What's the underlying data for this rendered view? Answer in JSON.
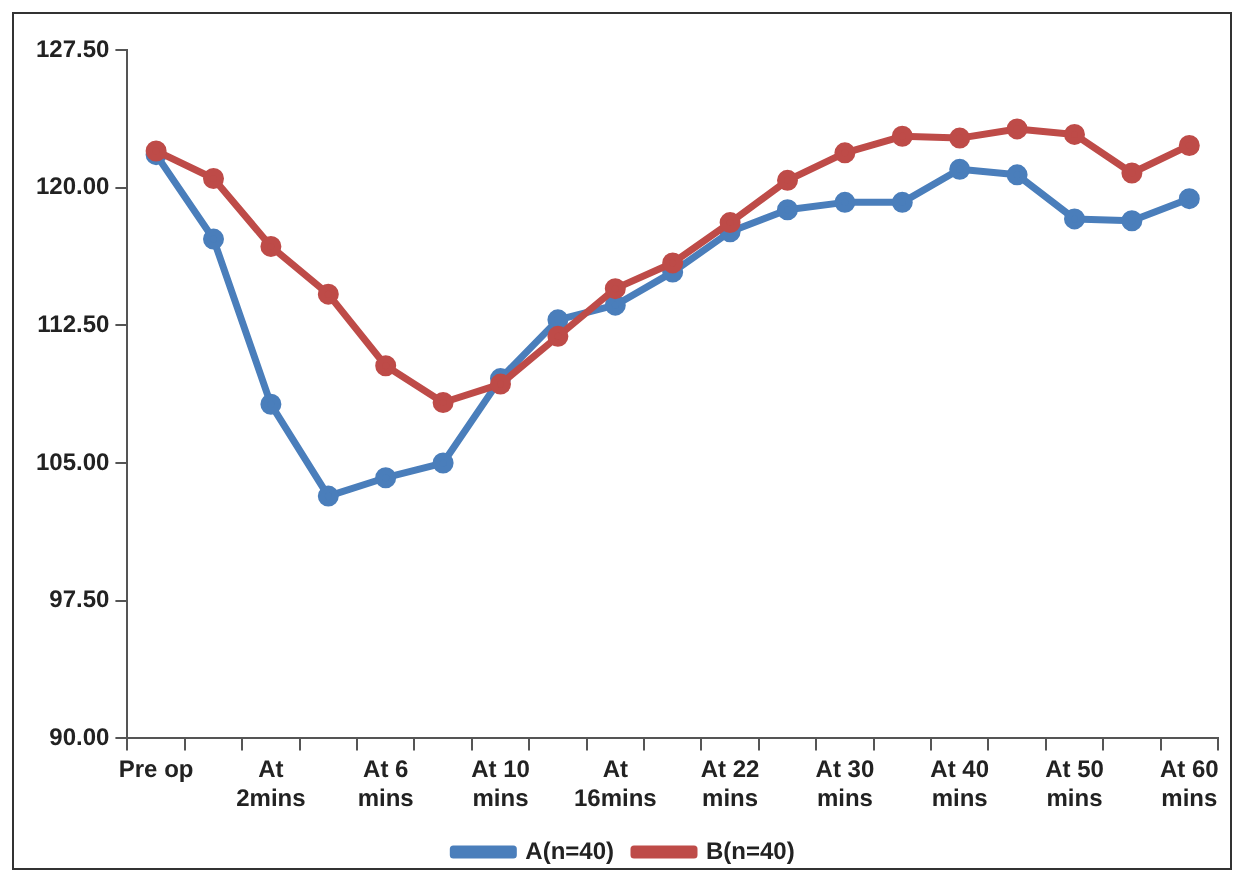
{
  "chart_data": {
    "type": "line",
    "categories": [
      "Pre op",
      null,
      "At\n2mins",
      null,
      "At 6\nmins",
      null,
      "At 10\nmins",
      null,
      "At\n16mins",
      null,
      "At 22\nmins",
      null,
      "At 30\nmins",
      null,
      "At 40\nmins",
      null,
      "At 50\nmins",
      null,
      "At 60\nmins"
    ],
    "series": [
      {
        "name": "A(n=40)",
        "color": "#4a7ebb",
        "values": [
          121.8,
          117.2,
          108.2,
          103.2,
          104.2,
          105.0,
          109.6,
          112.8,
          113.6,
          115.4,
          117.6,
          118.8,
          119.2,
          119.2,
          121.0,
          120.7,
          118.3,
          118.2,
          119.4
        ]
      },
      {
        "name": "B(n=40)",
        "color": "#be4b48",
        "values": [
          122.0,
          120.5,
          116.8,
          114.2,
          110.3,
          108.3,
          109.3,
          111.9,
          114.5,
          115.9,
          118.1,
          120.4,
          121.9,
          122.8,
          122.7,
          123.2,
          122.9,
          120.8,
          122.3
        ]
      }
    ],
    "ylim": [
      90,
      127.5
    ],
    "yticks": [
      {
        "value": 90,
        "label": "90.00"
      },
      {
        "value": 97.5,
        "label": "97.50"
      },
      {
        "value": 105,
        "label": "105.00"
      },
      {
        "value": 112.5,
        "label": "112.50"
      },
      {
        "value": 120,
        "label": "120.00"
      },
      {
        "value": 127.5,
        "label": "127.50"
      }
    ],
    "grid": false,
    "legend": "bottom",
    "marker": "circle",
    "line_style": "solid"
  }
}
